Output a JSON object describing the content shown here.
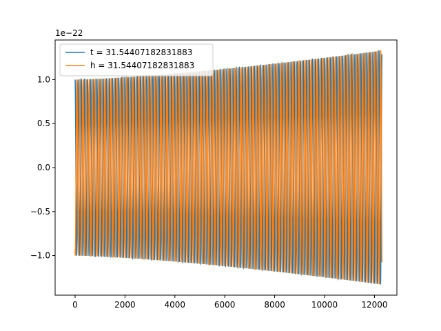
{
  "chart_data": {
    "type": "line",
    "title": "",
    "xlabel": "",
    "ylabel": "",
    "offset_label": "1e−22",
    "xlim": [
      -800,
      12900
    ],
    "ylim": [
      -1.45,
      1.45
    ],
    "xticks": [
      0,
      2000,
      4000,
      6000,
      8000,
      10000,
      12000
    ],
    "xtick_labels": [
      "0",
      "2000",
      "4000",
      "6000",
      "8000",
      "10000",
      "12000"
    ],
    "yticks": [
      -1.0,
      -0.5,
      0.0,
      0.5,
      1.0
    ],
    "ytick_labels": [
      "−1.0",
      "−0.5",
      "0.0",
      "0.5",
      "1.0"
    ],
    "grid": false,
    "legend_position": "upper-left",
    "series": [
      {
        "name": "t = 31.54407182831883",
        "color": "#1f77b4",
        "x_start": 0,
        "x_end": 12300,
        "cycles": 98,
        "amplitude_start": 1.0,
        "amplitude_end": 1.33,
        "start_value": 1.0
      },
      {
        "name": "h = 31.54407182831883",
        "color": "#ff7f0e",
        "x_start": 0,
        "x_end": 12300,
        "cycles": 98,
        "amplitude_start": 1.0,
        "amplitude_end": 1.33,
        "start_value": -0.93
      }
    ]
  }
}
